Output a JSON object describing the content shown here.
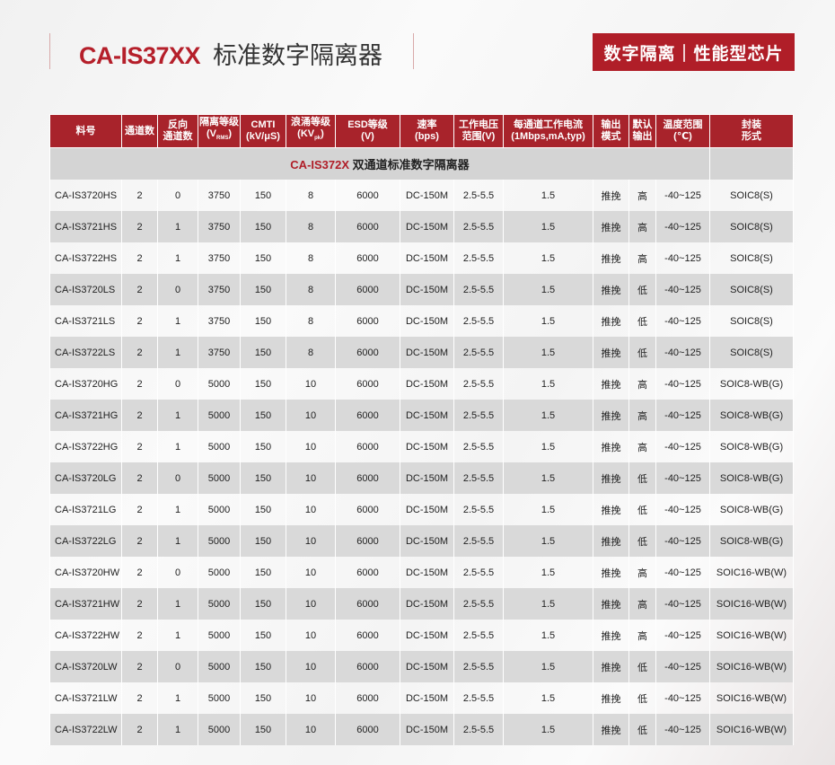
{
  "header": {
    "model": "CA-IS37XX",
    "title": "标准数字隔离器",
    "tag": "数字隔离｜性能型芯片"
  },
  "table": {
    "columns": [
      {
        "l1": "料号",
        "l2": ""
      },
      {
        "l1": "通道数",
        "l2": ""
      },
      {
        "l1": "反向",
        "l2": "通道数"
      },
      {
        "l1": "隔离等级",
        "l2": "(V",
        "sub": "RMS",
        "l3": ")"
      },
      {
        "l1": "CMTI",
        "l2": "(kV/μS)"
      },
      {
        "l1": "浪涌等级",
        "l2": "(KV",
        "sub": "pk",
        "l3": ")"
      },
      {
        "l1": "ESD等级",
        "l2": "(V)"
      },
      {
        "l1": "速率",
        "l2": "(bps)"
      },
      {
        "l1": "工作电压",
        "l2": "范围(V)"
      },
      {
        "l1": "每通道工作电流",
        "l2": "(1Mbps,mA,typ)"
      },
      {
        "l1": "输出",
        "l2": "模式"
      },
      {
        "l1": "默认",
        "l2": "输出"
      },
      {
        "l1": "温度范围",
        "l2": "(℃)"
      },
      {
        "l1": "封装",
        "l2": "形式"
      }
    ],
    "group": {
      "model": "CA-IS372X",
      "title": "双通道标准数字隔离器"
    },
    "rows": [
      [
        "CA-IS3720HS",
        "2",
        "0",
        "3750",
        "150",
        "8",
        "6000",
        "DC-150M",
        "2.5-5.5",
        "1.5",
        "推挽",
        "高",
        "-40~125",
        "SOIC8(S)"
      ],
      [
        "CA-IS3721HS",
        "2",
        "1",
        "3750",
        "150",
        "8",
        "6000",
        "DC-150M",
        "2.5-5.5",
        "1.5",
        "推挽",
        "高",
        "-40~125",
        "SOIC8(S)"
      ],
      [
        "CA-IS3722HS",
        "2",
        "1",
        "3750",
        "150",
        "8",
        "6000",
        "DC-150M",
        "2.5-5.5",
        "1.5",
        "推挽",
        "高",
        "-40~125",
        "SOIC8(S)"
      ],
      [
        "CA-IS3720LS",
        "2",
        "0",
        "3750",
        "150",
        "8",
        "6000",
        "DC-150M",
        "2.5-5.5",
        "1.5",
        "推挽",
        "低",
        "-40~125",
        "SOIC8(S)"
      ],
      [
        "CA-IS3721LS",
        "2",
        "1",
        "3750",
        "150",
        "8",
        "6000",
        "DC-150M",
        "2.5-5.5",
        "1.5",
        "推挽",
        "低",
        "-40~125",
        "SOIC8(S)"
      ],
      [
        "CA-IS3722LS",
        "2",
        "1",
        "3750",
        "150",
        "8",
        "6000",
        "DC-150M",
        "2.5-5.5",
        "1.5",
        "推挽",
        "低",
        "-40~125",
        "SOIC8(S)"
      ],
      [
        "CA-IS3720HG",
        "2",
        "0",
        "5000",
        "150",
        "10",
        "6000",
        "DC-150M",
        "2.5-5.5",
        "1.5",
        "推挽",
        "高",
        "-40~125",
        "SOIC8-WB(G)"
      ],
      [
        "CA-IS3721HG",
        "2",
        "1",
        "5000",
        "150",
        "10",
        "6000",
        "DC-150M",
        "2.5-5.5",
        "1.5",
        "推挽",
        "高",
        "-40~125",
        "SOIC8-WB(G)"
      ],
      [
        "CA-IS3722HG",
        "2",
        "1",
        "5000",
        "150",
        "10",
        "6000",
        "DC-150M",
        "2.5-5.5",
        "1.5",
        "推挽",
        "高",
        "-40~125",
        "SOIC8-WB(G)"
      ],
      [
        "CA-IS3720LG",
        "2",
        "0",
        "5000",
        "150",
        "10",
        "6000",
        "DC-150M",
        "2.5-5.5",
        "1.5",
        "推挽",
        "低",
        "-40~125",
        "SOIC8-WB(G)"
      ],
      [
        "CA-IS3721LG",
        "2",
        "1",
        "5000",
        "150",
        "10",
        "6000",
        "DC-150M",
        "2.5-5.5",
        "1.5",
        "推挽",
        "低",
        "-40~125",
        "SOIC8-WB(G)"
      ],
      [
        "CA-IS3722LG",
        "2",
        "1",
        "5000",
        "150",
        "10",
        "6000",
        "DC-150M",
        "2.5-5.5",
        "1.5",
        "推挽",
        "低",
        "-40~125",
        "SOIC8-WB(G)"
      ],
      [
        "CA-IS3720HW",
        "2",
        "0",
        "5000",
        "150",
        "10",
        "6000",
        "DC-150M",
        "2.5-5.5",
        "1.5",
        "推挽",
        "高",
        "-40~125",
        "SOIC16-WB(W)"
      ],
      [
        "CA-IS3721HW",
        "2",
        "1",
        "5000",
        "150",
        "10",
        "6000",
        "DC-150M",
        "2.5-5.5",
        "1.5",
        "推挽",
        "高",
        "-40~125",
        "SOIC16-WB(W)"
      ],
      [
        "CA-IS3722HW",
        "2",
        "1",
        "5000",
        "150",
        "10",
        "6000",
        "DC-150M",
        "2.5-5.5",
        "1.5",
        "推挽",
        "高",
        "-40~125",
        "SOIC16-WB(W)"
      ],
      [
        "CA-IS3720LW",
        "2",
        "0",
        "5000",
        "150",
        "10",
        "6000",
        "DC-150M",
        "2.5-5.5",
        "1.5",
        "推挽",
        "低",
        "-40~125",
        "SOIC16-WB(W)"
      ],
      [
        "CA-IS3721LW",
        "2",
        "1",
        "5000",
        "150",
        "10",
        "6000",
        "DC-150M",
        "2.5-5.5",
        "1.5",
        "推挽",
        "低",
        "-40~125",
        "SOIC16-WB(W)"
      ],
      [
        "CA-IS3722LW",
        "2",
        "1",
        "5000",
        "150",
        "10",
        "6000",
        "DC-150M",
        "2.5-5.5",
        "1.5",
        "推挽",
        "低",
        "-40~125",
        "SOIC16-WB(W)"
      ]
    ]
  }
}
